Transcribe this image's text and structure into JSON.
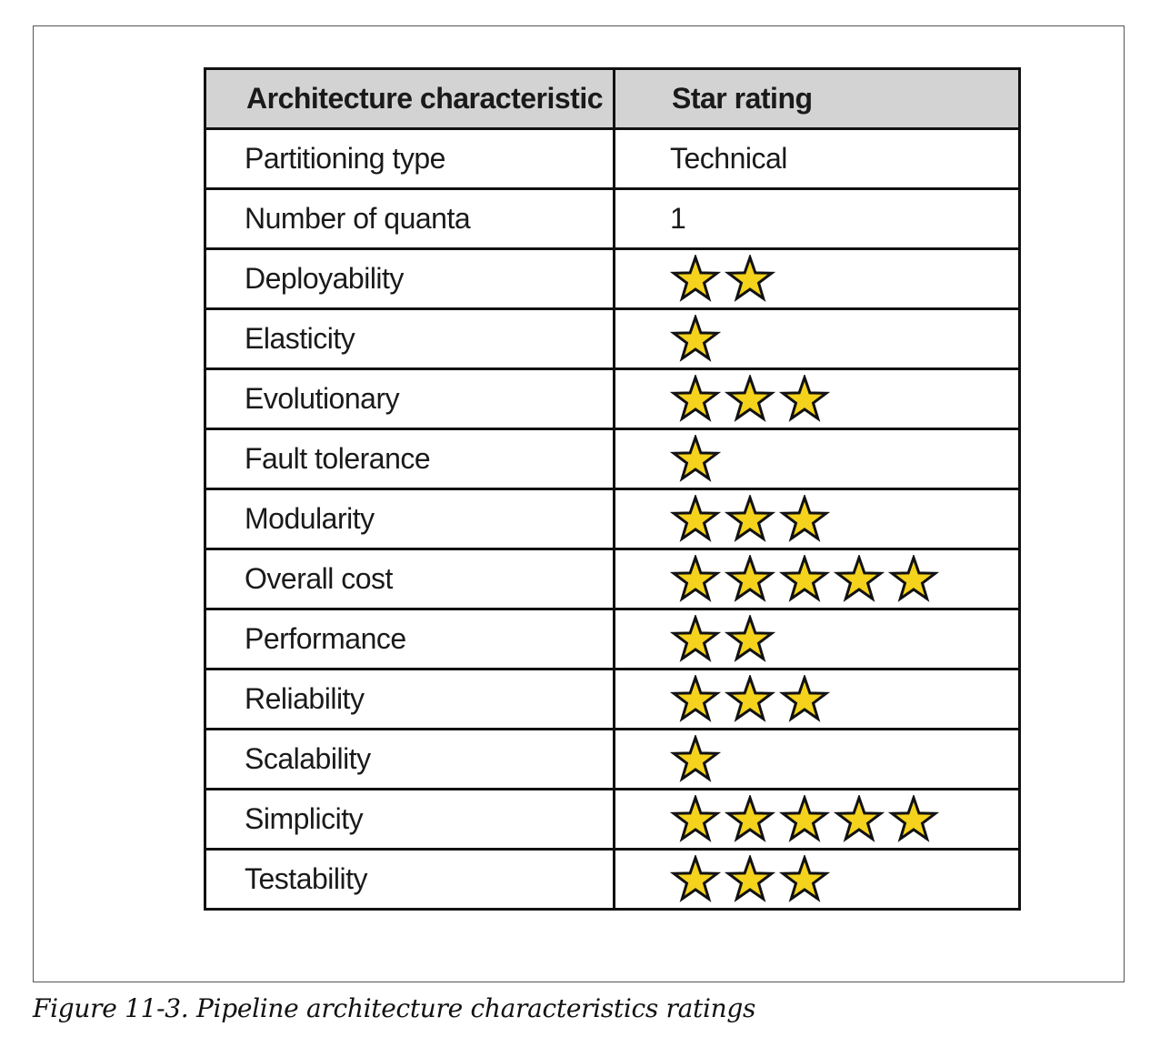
{
  "table": {
    "header": {
      "characteristic": "Architecture characteristic",
      "rating": "Star rating"
    },
    "rows": [
      {
        "name": "Partitioning type",
        "text": "Technical"
      },
      {
        "name": "Number of quanta",
        "text": "1"
      },
      {
        "name": "Deployability",
        "stars": 2
      },
      {
        "name": "Elasticity",
        "stars": 1
      },
      {
        "name": "Evolutionary",
        "stars": 3
      },
      {
        "name": "Fault tolerance",
        "stars": 1
      },
      {
        "name": "Modularity",
        "stars": 3
      },
      {
        "name": "Overall cost",
        "stars": 5
      },
      {
        "name": "Performance",
        "stars": 2
      },
      {
        "name": "Reliability",
        "stars": 3
      },
      {
        "name": "Scalability",
        "stars": 1
      },
      {
        "name": "Simplicity",
        "stars": 5
      },
      {
        "name": "Testability",
        "stars": 3
      }
    ]
  },
  "caption": "Figure 11-3. Pipeline architecture characteristics ratings",
  "colors": {
    "star_fill": "#f5d21c",
    "star_stroke": "#111111",
    "header_bg": "#d3d3d3"
  }
}
